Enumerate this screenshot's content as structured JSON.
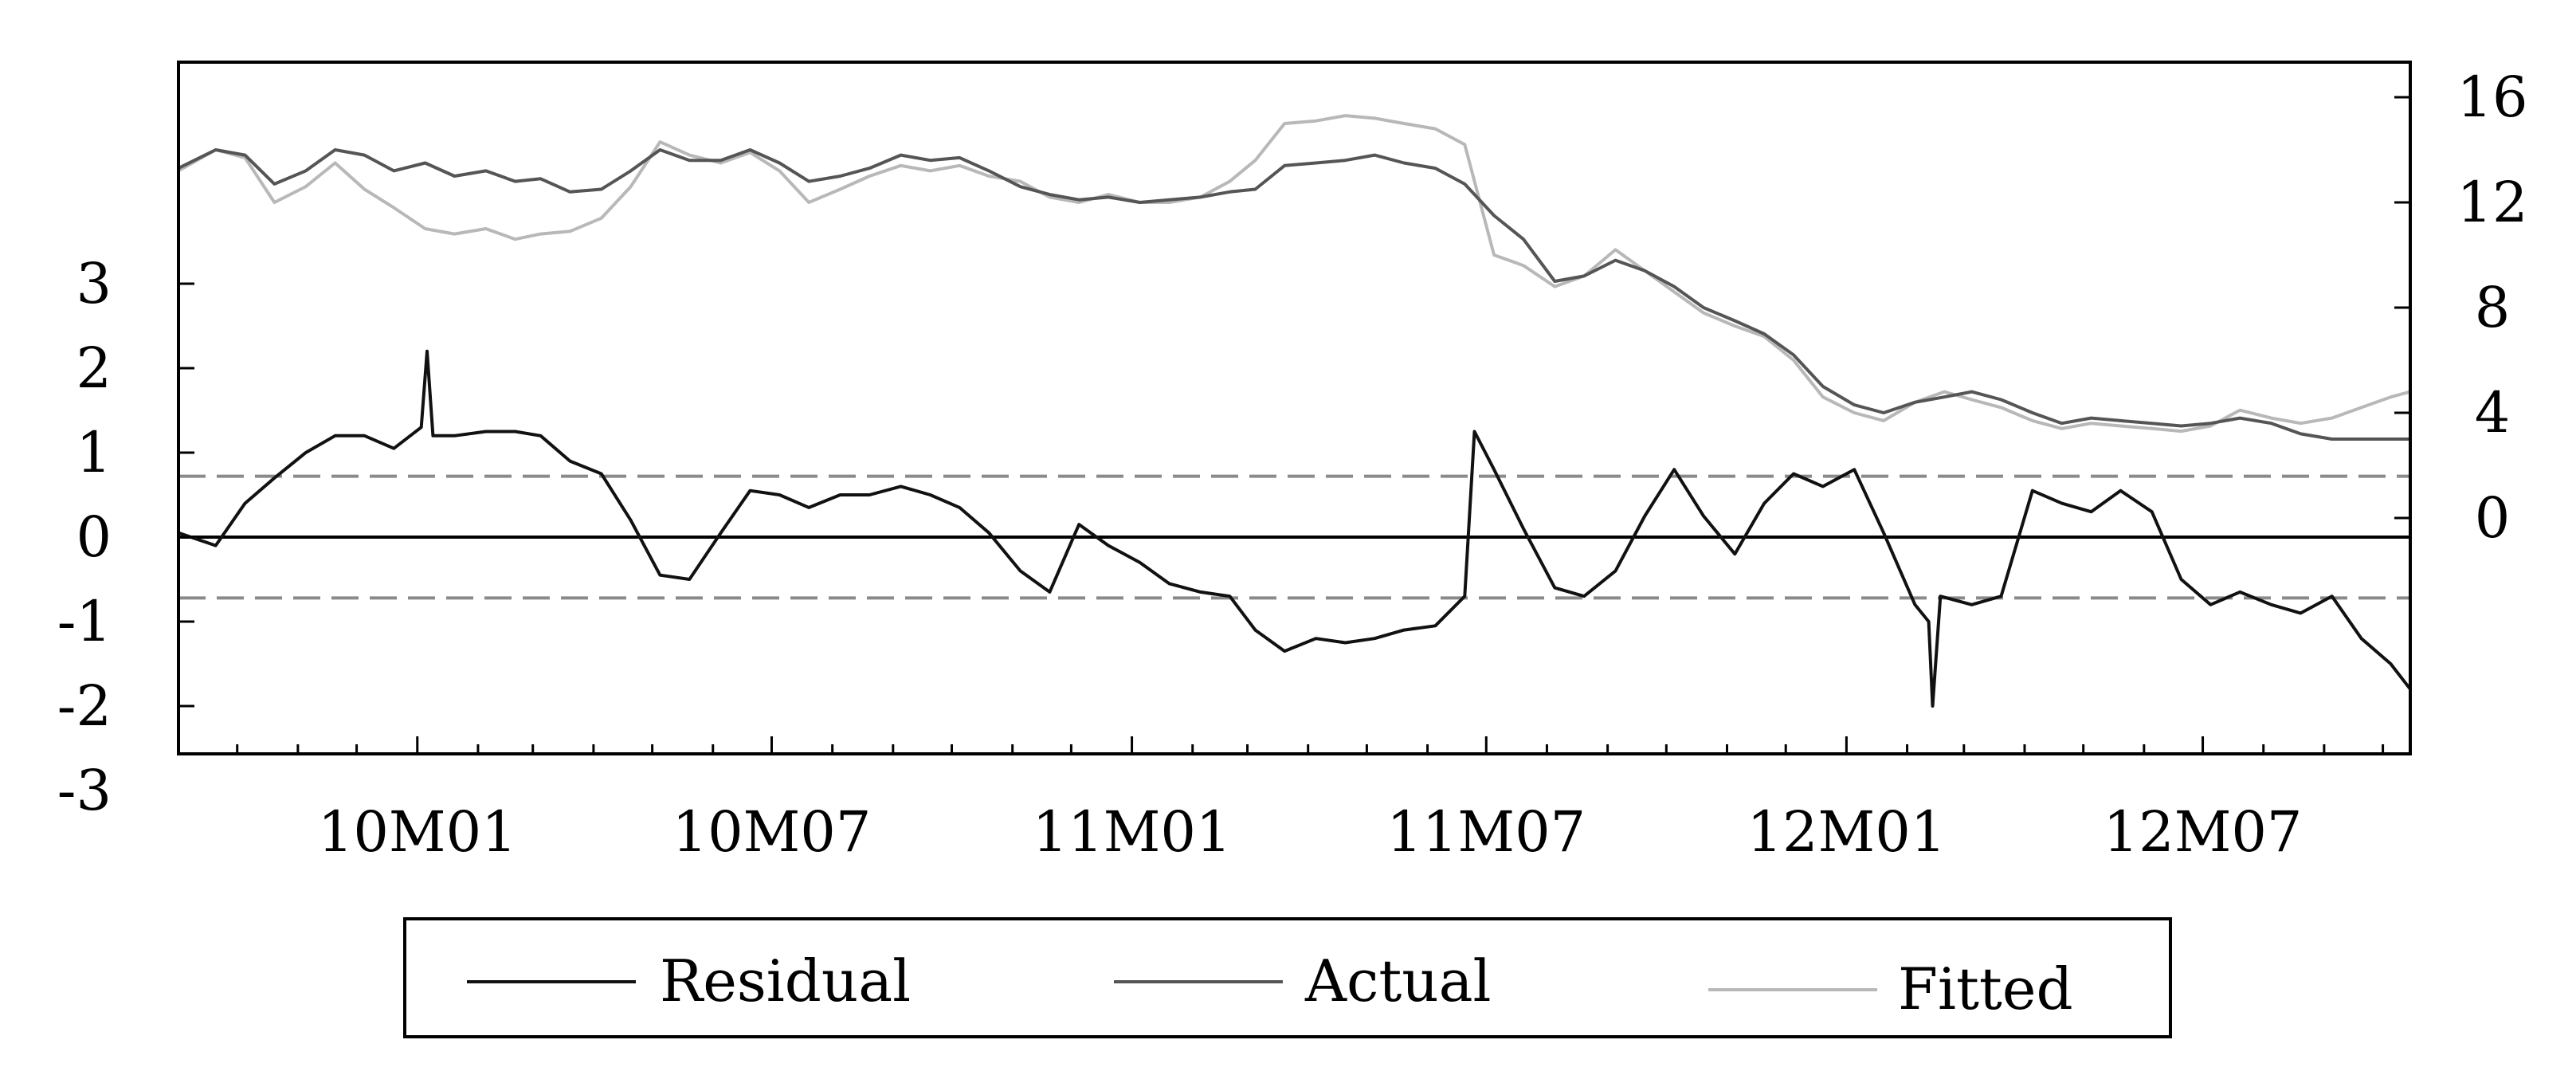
{
  "chart_data": {
    "type": "line",
    "title": "",
    "xlabel": "",
    "ylabel": "",
    "x_ticks": [
      "10M01",
      "10M07",
      "11M01",
      "11M07",
      "12M01",
      "12M07"
    ],
    "x_tick_dates": [
      "2010-01-01",
      "2010-07-01",
      "2011-01-01",
      "2011-07-01",
      "2012-01-01",
      "2012-07-01"
    ],
    "x_range": [
      "2009-09-01",
      "2012-10-15"
    ],
    "y_left": {
      "range": [
        -3,
        3
      ],
      "ticks": [
        -3,
        -2,
        -1,
        0,
        1,
        2,
        3
      ],
      "tick_labels": [
        "-3",
        "-2",
        "-1",
        "0",
        "1",
        "2",
        "3"
      ]
    },
    "y_right": {
      "range": [
        -2,
        16
      ],
      "ticks": [
        0,
        4,
        8,
        12,
        16
      ],
      "tick_labels": [
        "0",
        "4",
        "8",
        "12",
        "16"
      ]
    },
    "reference_lines": {
      "zero": 0,
      "upper_band": 0.72,
      "lower_band": -0.72
    },
    "grid": false,
    "legend": {
      "position": "bottom",
      "entries": [
        "Residual",
        "Actual",
        "Fitted"
      ]
    },
    "series": [
      {
        "name": "Residual",
        "axis": "left",
        "color": "#111111",
        "x": [
          "2009-09-01",
          "2009-09-20",
          "2009-10-05",
          "2009-10-20",
          "2009-11-05",
          "2009-11-20",
          "2009-12-05",
          "2009-12-20",
          "2010-01-03",
          "2010-01-06",
          "2010-01-09",
          "2010-01-20",
          "2010-02-05",
          "2010-02-20",
          "2010-03-05",
          "2010-03-20",
          "2010-04-05",
          "2010-04-20",
          "2010-05-05",
          "2010-05-20",
          "2010-06-05",
          "2010-06-20",
          "2010-07-05",
          "2010-07-20",
          "2010-08-05",
          "2010-08-20",
          "2010-09-05",
          "2010-09-20",
          "2010-10-05",
          "2010-10-20",
          "2010-11-05",
          "2010-11-20",
          "2010-12-05",
          "2010-12-20",
          "2011-01-05",
          "2011-01-20",
          "2011-02-05",
          "2011-02-20",
          "2011-03-05",
          "2011-03-20",
          "2011-04-05",
          "2011-04-20",
          "2011-05-05",
          "2011-05-20",
          "2011-06-05",
          "2011-06-20",
          "2011-06-25",
          "2011-07-05",
          "2011-07-20",
          "2011-08-05",
          "2011-08-20",
          "2011-09-05",
          "2011-09-20",
          "2011-10-05",
          "2011-10-20",
          "2011-11-05",
          "2011-11-20",
          "2011-12-05",
          "2011-12-20",
          "2012-01-05",
          "2012-01-20",
          "2012-02-05",
          "2012-02-12",
          "2012-02-14",
          "2012-02-18",
          "2012-03-05",
          "2012-03-20",
          "2012-04-05",
          "2012-04-20",
          "2012-05-05",
          "2012-05-20",
          "2012-06-05",
          "2012-06-20",
          "2012-07-05",
          "2012-07-20",
          "2012-08-05",
          "2012-08-20",
          "2012-09-05",
          "2012-09-20",
          "2012-10-05",
          "2012-10-15"
        ],
        "values": [
          0.05,
          -0.1,
          0.4,
          0.7,
          1.0,
          1.2,
          1.2,
          1.05,
          1.3,
          2.2,
          1.2,
          1.2,
          1.25,
          1.25,
          1.2,
          0.9,
          0.75,
          0.2,
          -0.45,
          -0.5,
          0.05,
          0.55,
          0.5,
          0.35,
          0.5,
          0.5,
          0.6,
          0.5,
          0.35,
          0.05,
          -0.4,
          -0.65,
          0.15,
          -0.1,
          -0.3,
          -0.55,
          -0.65,
          -0.7,
          -1.1,
          -1.35,
          -1.2,
          -1.25,
          -1.2,
          -1.1,
          -1.05,
          -0.7,
          1.25,
          0.8,
          0.1,
          -0.6,
          -0.7,
          -0.4,
          0.25,
          0.8,
          0.25,
          -0.2,
          0.4,
          0.75,
          0.6,
          0.8,
          0.05,
          -0.8,
          -1.0,
          -2.0,
          -0.7,
          -0.8,
          -0.7,
          0.55,
          0.4,
          0.3,
          0.55,
          0.3,
          -0.5,
          -0.8,
          -0.65,
          -0.8,
          -0.9,
          -0.7,
          -1.2,
          -1.5,
          -1.8
        ]
      },
      {
        "name": "Actual",
        "axis": "right",
        "color": "#555555",
        "x": [
          "2009-09-01",
          "2009-09-20",
          "2009-10-05",
          "2009-10-20",
          "2009-11-05",
          "2009-11-20",
          "2009-12-05",
          "2009-12-20",
          "2010-01-05",
          "2010-01-20",
          "2010-02-05",
          "2010-02-20",
          "2010-03-05",
          "2010-03-20",
          "2010-04-05",
          "2010-04-20",
          "2010-05-05",
          "2010-05-20",
          "2010-06-05",
          "2010-06-20",
          "2010-07-05",
          "2010-07-20",
          "2010-08-05",
          "2010-08-20",
          "2010-09-05",
          "2010-09-20",
          "2010-10-05",
          "2010-10-20",
          "2010-11-05",
          "2010-11-20",
          "2010-12-05",
          "2010-12-20",
          "2011-01-05",
          "2011-01-20",
          "2011-02-05",
          "2011-02-20",
          "2011-03-05",
          "2011-03-20",
          "2011-04-05",
          "2011-04-20",
          "2011-05-05",
          "2011-05-20",
          "2011-06-05",
          "2011-06-20",
          "2011-07-05",
          "2011-07-20",
          "2011-08-05",
          "2011-08-20",
          "2011-09-05",
          "2011-09-20",
          "2011-10-05",
          "2011-10-20",
          "2011-11-05",
          "2011-11-20",
          "2011-12-05",
          "2011-12-20",
          "2012-01-05",
          "2012-01-20",
          "2012-02-05",
          "2012-02-20",
          "2012-03-05",
          "2012-03-20",
          "2012-04-05",
          "2012-04-20",
          "2012-05-05",
          "2012-05-20",
          "2012-06-05",
          "2012-06-20",
          "2012-07-05",
          "2012-07-20",
          "2012-08-05",
          "2012-08-20",
          "2012-09-05",
          "2012-09-20",
          "2012-10-05",
          "2012-10-15"
        ],
        "values": [
          13.3,
          14.0,
          13.8,
          12.7,
          13.2,
          14.0,
          13.8,
          13.2,
          13.5,
          13.0,
          13.2,
          12.8,
          12.9,
          12.4,
          12.5,
          13.2,
          14.0,
          13.6,
          13.6,
          14.0,
          13.5,
          12.8,
          13.0,
          13.3,
          13.8,
          13.6,
          13.7,
          13.2,
          12.6,
          12.3,
          12.1,
          12.2,
          12.0,
          12.1,
          12.2,
          12.4,
          12.5,
          13.4,
          13.5,
          13.6,
          13.8,
          13.5,
          13.3,
          12.7,
          11.5,
          10.6,
          9.0,
          9.2,
          9.8,
          9.4,
          8.8,
          8.0,
          7.5,
          7.0,
          6.2,
          5.0,
          4.3,
          4.0,
          4.4,
          4.6,
          4.8,
          4.5,
          4.0,
          3.6,
          3.8,
          3.7,
          3.6,
          3.5,
          3.6,
          3.8,
          3.6,
          3.2,
          3.0,
          3.0,
          3.0,
          3.0
        ]
      },
      {
        "name": "Fitted",
        "axis": "right",
        "color": "#b8b8b8",
        "x": [
          "2009-09-01",
          "2009-09-20",
          "2009-10-05",
          "2009-10-20",
          "2009-11-05",
          "2009-11-20",
          "2009-12-05",
          "2009-12-20",
          "2010-01-05",
          "2010-01-20",
          "2010-02-05",
          "2010-02-20",
          "2010-03-05",
          "2010-03-20",
          "2010-04-05",
          "2010-04-20",
          "2010-05-05",
          "2010-05-20",
          "2010-06-05",
          "2010-06-20",
          "2010-07-05",
          "2010-07-20",
          "2010-08-05",
          "2010-08-20",
          "2010-09-05",
          "2010-09-20",
          "2010-10-05",
          "2010-10-20",
          "2010-11-05",
          "2010-11-20",
          "2010-12-05",
          "2010-12-20",
          "2011-01-05",
          "2011-01-20",
          "2011-02-05",
          "2011-02-20",
          "2011-03-05",
          "2011-03-20",
          "2011-04-05",
          "2011-04-20",
          "2011-05-05",
          "2011-05-20",
          "2011-06-05",
          "2011-06-20",
          "2011-07-05",
          "2011-07-20",
          "2011-08-05",
          "2011-08-20",
          "2011-09-05",
          "2011-09-20",
          "2011-10-05",
          "2011-10-20",
          "2011-11-05",
          "2011-11-20",
          "2011-12-05",
          "2011-12-20",
          "2012-01-05",
          "2012-01-20",
          "2012-02-05",
          "2012-02-20",
          "2012-03-05",
          "2012-03-20",
          "2012-04-05",
          "2012-04-20",
          "2012-05-05",
          "2012-05-20",
          "2012-06-05",
          "2012-06-20",
          "2012-07-05",
          "2012-07-20",
          "2012-08-05",
          "2012-08-20",
          "2012-09-05",
          "2012-09-20",
          "2012-10-05",
          "2012-10-15"
        ],
        "values": [
          13.2,
          14.0,
          13.7,
          12.0,
          12.6,
          13.5,
          12.5,
          11.8,
          11.0,
          10.8,
          11.0,
          10.6,
          10.8,
          10.9,
          11.4,
          12.6,
          14.3,
          13.8,
          13.5,
          13.9,
          13.2,
          12.0,
          12.5,
          13.0,
          13.4,
          13.2,
          13.4,
          13.0,
          12.8,
          12.2,
          12.0,
          12.3,
          12.0,
          12.0,
          12.2,
          12.8,
          13.6,
          15.0,
          15.1,
          15.3,
          15.2,
          15.0,
          14.8,
          14.2,
          10.0,
          9.6,
          8.8,
          9.2,
          10.2,
          9.4,
          8.6,
          7.8,
          7.3,
          6.9,
          6.0,
          4.6,
          4.0,
          3.7,
          4.4,
          4.8,
          4.5,
          4.2,
          3.7,
          3.4,
          3.6,
          3.5,
          3.4,
          3.3,
          3.5,
          4.1,
          3.8,
          3.6,
          3.8,
          4.2,
          4.6,
          4.8
        ]
      }
    ]
  }
}
